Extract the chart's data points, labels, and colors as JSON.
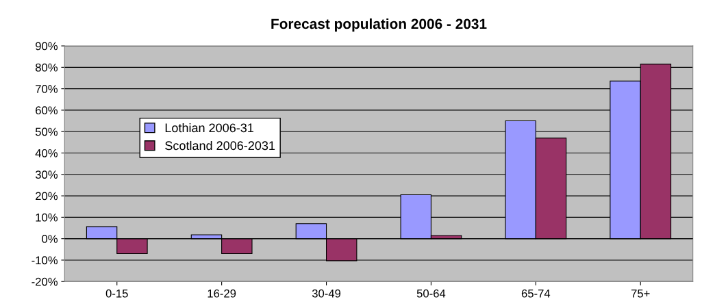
{
  "chart_data": {
    "type": "bar",
    "title": "Forecast population 2006 - 2031",
    "categories": [
      "0-15",
      "16-29",
      "30-49",
      "50-64",
      "65-74",
      "75+"
    ],
    "series": [
      {
        "name": "Lothian 2006-31",
        "color": "#9999ff",
        "values": [
          5.6,
          1.8,
          7,
          20.5,
          55,
          73.6
        ]
      },
      {
        "name": "Scotland 2006-2031",
        "color": "#993366",
        "values": [
          -7,
          -7,
          -10.3,
          1.5,
          47,
          81.5
        ]
      }
    ],
    "ylim": [
      -20,
      90
    ],
    "yticks": [
      {
        "value": -20,
        "label": "-20%"
      },
      {
        "value": -10,
        "label": "-10%"
      },
      {
        "value": 0,
        "label": "0%"
      },
      {
        "value": 10,
        "label": "10%"
      },
      {
        "value": 20,
        "label": "20%"
      },
      {
        "value": 30,
        "label": "30%"
      },
      {
        "value": 40,
        "label": "40%"
      },
      {
        "value": 50,
        "label": "50%"
      },
      {
        "value": 60,
        "label": "60%"
      },
      {
        "value": 70,
        "label": "70%"
      },
      {
        "value": 80,
        "label": "80%"
      },
      {
        "value": 90,
        "label": "90%"
      }
    ],
    "grid": "y",
    "legend": "center left"
  }
}
